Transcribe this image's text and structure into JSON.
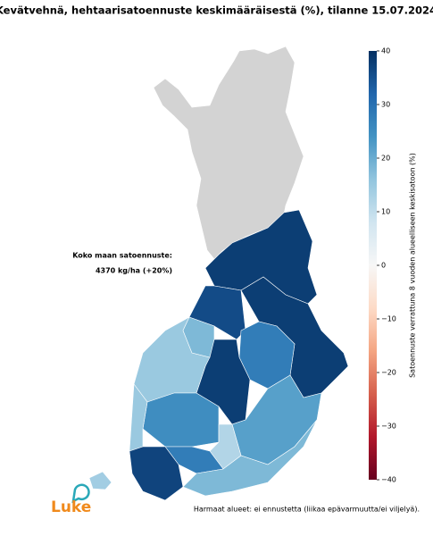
{
  "map": {
    "title": "Kevätvehnä, hehtaarisatoennuste keskimääräisestä (%), tilanne 15.07.2024",
    "annotation": {
      "heading": "Koko maan satoennuste:",
      "value": "4370 kg/ha (+20%)"
    },
    "footnote": "Harmaat alueet: ei ennustetta (liikaa epävarmuutta/ei viljelyä).",
    "logo": "Luke",
    "no_data_color": "#d3d3d3",
    "colorbar": {
      "label": "Satoennuste verrattuna 8 vuoden alueelliseen keskisatoon (%)",
      "colormap": "RdBu",
      "lim": [
        -40,
        40
      ],
      "ticks": [
        40,
        30,
        20,
        10,
        0,
        {
          "value": -10,
          "label": "−10"
        },
        {
          "value": -20,
          "label": "−20"
        },
        {
          "value": -30,
          "label": "−30"
        },
        {
          "value": -40,
          "label": "−40"
        }
      ]
    },
    "regions": [
      {
        "value": 38
      },
      {
        "value": 36
      },
      {
        "value": 38
      },
      {
        "value": 28
      },
      {
        "value": 38
      },
      {
        "value": 15
      },
      {
        "value": 18
      },
      {
        "value": 25
      },
      {
        "value": 15
      },
      {
        "value": 22
      },
      {
        "value": 12
      },
      {
        "value": 28
      },
      {
        "value": 37
      },
      {
        "value": 18
      },
      {
        "value": 14
      }
    ]
  }
}
